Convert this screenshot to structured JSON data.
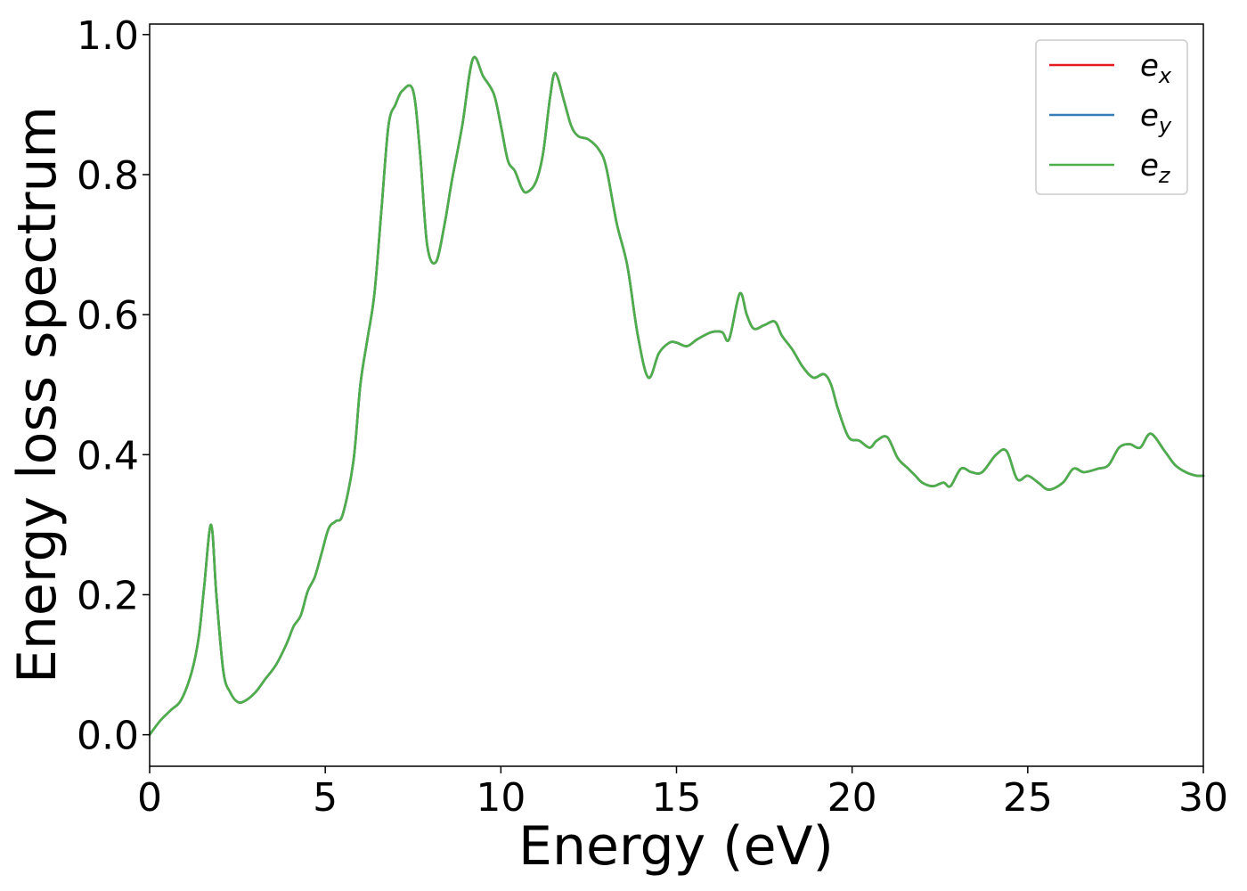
{
  "chart_data": {
    "type": "line",
    "xlabel": "Energy (eV)",
    "ylabel": "Energy loss spectrum",
    "xlim": [
      0,
      30
    ],
    "ylim": [
      -0.045,
      1.015
    ],
    "xticks": [
      0,
      5,
      10,
      15,
      20,
      25,
      30
    ],
    "xtick_labels": [
      "0",
      "5",
      "10",
      "15",
      "20",
      "25",
      "30"
    ],
    "yticks": [
      0.0,
      0.2,
      0.4,
      0.6,
      0.8,
      1.0
    ],
    "ytick_labels": [
      "0.0",
      "0.2",
      "0.4",
      "0.6",
      "0.8",
      "1.0"
    ],
    "grid": false,
    "legend_position": "top-right",
    "x": [
      0.0,
      0.3,
      0.6,
      0.9,
      1.2,
      1.4,
      1.55,
      1.75,
      1.9,
      2.1,
      2.3,
      2.5,
      2.7,
      3.0,
      3.3,
      3.6,
      3.9,
      4.1,
      4.3,
      4.5,
      4.7,
      4.9,
      5.1,
      5.3,
      5.5,
      5.8,
      6.0,
      6.2,
      6.4,
      6.6,
      6.8,
      7.0,
      7.2,
      7.5,
      7.7,
      7.9,
      8.15,
      8.4,
      8.6,
      8.9,
      9.2,
      9.5,
      9.8,
      10.0,
      10.2,
      10.4,
      10.6,
      10.75,
      11.0,
      11.2,
      11.4,
      11.55,
      11.8,
      12.0,
      12.2,
      12.5,
      12.8,
      13.0,
      13.3,
      13.6,
      13.9,
      14.2,
      14.5,
      14.8,
      15.0,
      15.3,
      15.6,
      16.0,
      16.3,
      16.5,
      16.8,
      17.0,
      17.2,
      17.5,
      17.8,
      18.0,
      18.3,
      18.6,
      18.9,
      19.2,
      19.4,
      19.6,
      19.9,
      20.2,
      20.5,
      20.7,
      21.0,
      21.3,
      21.6,
      21.8,
      22.0,
      22.3,
      22.6,
      22.8,
      23.1,
      23.4,
      23.7,
      24.1,
      24.4,
      24.7,
      25.0,
      25.3,
      25.6,
      26.0,
      26.3,
      26.6,
      27.0,
      27.3,
      27.6,
      27.9,
      28.2,
      28.5,
      28.9,
      29.2,
      29.5,
      29.8,
      30.0
    ],
    "series": [
      {
        "name": "e_x",
        "label_base": "e",
        "label_sub": "x",
        "color": "#e41a1c",
        "values": [
          0.0,
          0.02,
          0.035,
          0.05,
          0.09,
          0.14,
          0.21,
          0.3,
          0.2,
          0.09,
          0.06,
          0.047,
          0.048,
          0.06,
          0.08,
          0.1,
          0.13,
          0.155,
          0.17,
          0.205,
          0.225,
          0.26,
          0.295,
          0.305,
          0.315,
          0.39,
          0.5,
          0.565,
          0.63,
          0.75,
          0.87,
          0.9,
          0.92,
          0.92,
          0.83,
          0.7,
          0.675,
          0.73,
          0.79,
          0.87,
          0.965,
          0.94,
          0.915,
          0.87,
          0.82,
          0.805,
          0.78,
          0.775,
          0.79,
          0.83,
          0.91,
          0.945,
          0.905,
          0.87,
          0.855,
          0.85,
          0.835,
          0.81,
          0.73,
          0.67,
          0.57,
          0.51,
          0.545,
          0.56,
          0.56,
          0.555,
          0.565,
          0.575,
          0.575,
          0.565,
          0.63,
          0.6,
          0.58,
          0.585,
          0.59,
          0.57,
          0.55,
          0.525,
          0.51,
          0.515,
          0.5,
          0.465,
          0.425,
          0.42,
          0.41,
          0.42,
          0.425,
          0.395,
          0.38,
          0.37,
          0.36,
          0.355,
          0.36,
          0.355,
          0.38,
          0.375,
          0.375,
          0.4,
          0.405,
          0.365,
          0.37,
          0.36,
          0.35,
          0.36,
          0.38,
          0.375,
          0.38,
          0.385,
          0.41,
          0.415,
          0.41,
          0.43,
          0.405,
          0.385,
          0.375,
          0.37,
          0.37
        ]
      },
      {
        "name": "e_y",
        "label_base": "e",
        "label_sub": "y",
        "color": "#377eb8",
        "values": [
          0.0,
          0.02,
          0.035,
          0.05,
          0.09,
          0.14,
          0.21,
          0.3,
          0.2,
          0.09,
          0.06,
          0.047,
          0.048,
          0.06,
          0.08,
          0.1,
          0.13,
          0.155,
          0.17,
          0.205,
          0.225,
          0.26,
          0.295,
          0.305,
          0.315,
          0.39,
          0.5,
          0.565,
          0.63,
          0.75,
          0.87,
          0.9,
          0.92,
          0.92,
          0.83,
          0.7,
          0.675,
          0.73,
          0.79,
          0.87,
          0.965,
          0.94,
          0.915,
          0.87,
          0.82,
          0.805,
          0.78,
          0.775,
          0.79,
          0.83,
          0.91,
          0.945,
          0.905,
          0.87,
          0.855,
          0.85,
          0.835,
          0.81,
          0.73,
          0.67,
          0.57,
          0.51,
          0.545,
          0.56,
          0.56,
          0.555,
          0.565,
          0.575,
          0.575,
          0.565,
          0.63,
          0.6,
          0.58,
          0.585,
          0.59,
          0.57,
          0.55,
          0.525,
          0.51,
          0.515,
          0.5,
          0.465,
          0.425,
          0.42,
          0.41,
          0.42,
          0.425,
          0.395,
          0.38,
          0.37,
          0.36,
          0.355,
          0.36,
          0.355,
          0.38,
          0.375,
          0.375,
          0.4,
          0.405,
          0.365,
          0.37,
          0.36,
          0.35,
          0.36,
          0.38,
          0.375,
          0.38,
          0.385,
          0.41,
          0.415,
          0.41,
          0.43,
          0.405,
          0.385,
          0.375,
          0.37,
          0.37
        ]
      },
      {
        "name": "e_z",
        "label_base": "e",
        "label_sub": "z",
        "color": "#4daf4a",
        "values": [
          0.0,
          0.02,
          0.035,
          0.05,
          0.09,
          0.14,
          0.21,
          0.3,
          0.2,
          0.09,
          0.06,
          0.047,
          0.048,
          0.06,
          0.08,
          0.1,
          0.13,
          0.155,
          0.17,
          0.205,
          0.225,
          0.26,
          0.295,
          0.305,
          0.315,
          0.39,
          0.5,
          0.565,
          0.63,
          0.75,
          0.87,
          0.9,
          0.92,
          0.92,
          0.83,
          0.7,
          0.675,
          0.73,
          0.79,
          0.87,
          0.965,
          0.94,
          0.915,
          0.87,
          0.82,
          0.805,
          0.78,
          0.775,
          0.79,
          0.83,
          0.91,
          0.945,
          0.905,
          0.87,
          0.855,
          0.85,
          0.835,
          0.81,
          0.73,
          0.67,
          0.57,
          0.51,
          0.545,
          0.56,
          0.56,
          0.555,
          0.565,
          0.575,
          0.575,
          0.565,
          0.63,
          0.6,
          0.58,
          0.585,
          0.59,
          0.57,
          0.55,
          0.525,
          0.51,
          0.515,
          0.5,
          0.465,
          0.425,
          0.42,
          0.41,
          0.42,
          0.425,
          0.395,
          0.38,
          0.37,
          0.36,
          0.355,
          0.36,
          0.355,
          0.38,
          0.375,
          0.375,
          0.4,
          0.405,
          0.365,
          0.37,
          0.36,
          0.35,
          0.36,
          0.38,
          0.375,
          0.38,
          0.385,
          0.41,
          0.415,
          0.41,
          0.43,
          0.405,
          0.385,
          0.375,
          0.37,
          0.37
        ]
      }
    ]
  }
}
